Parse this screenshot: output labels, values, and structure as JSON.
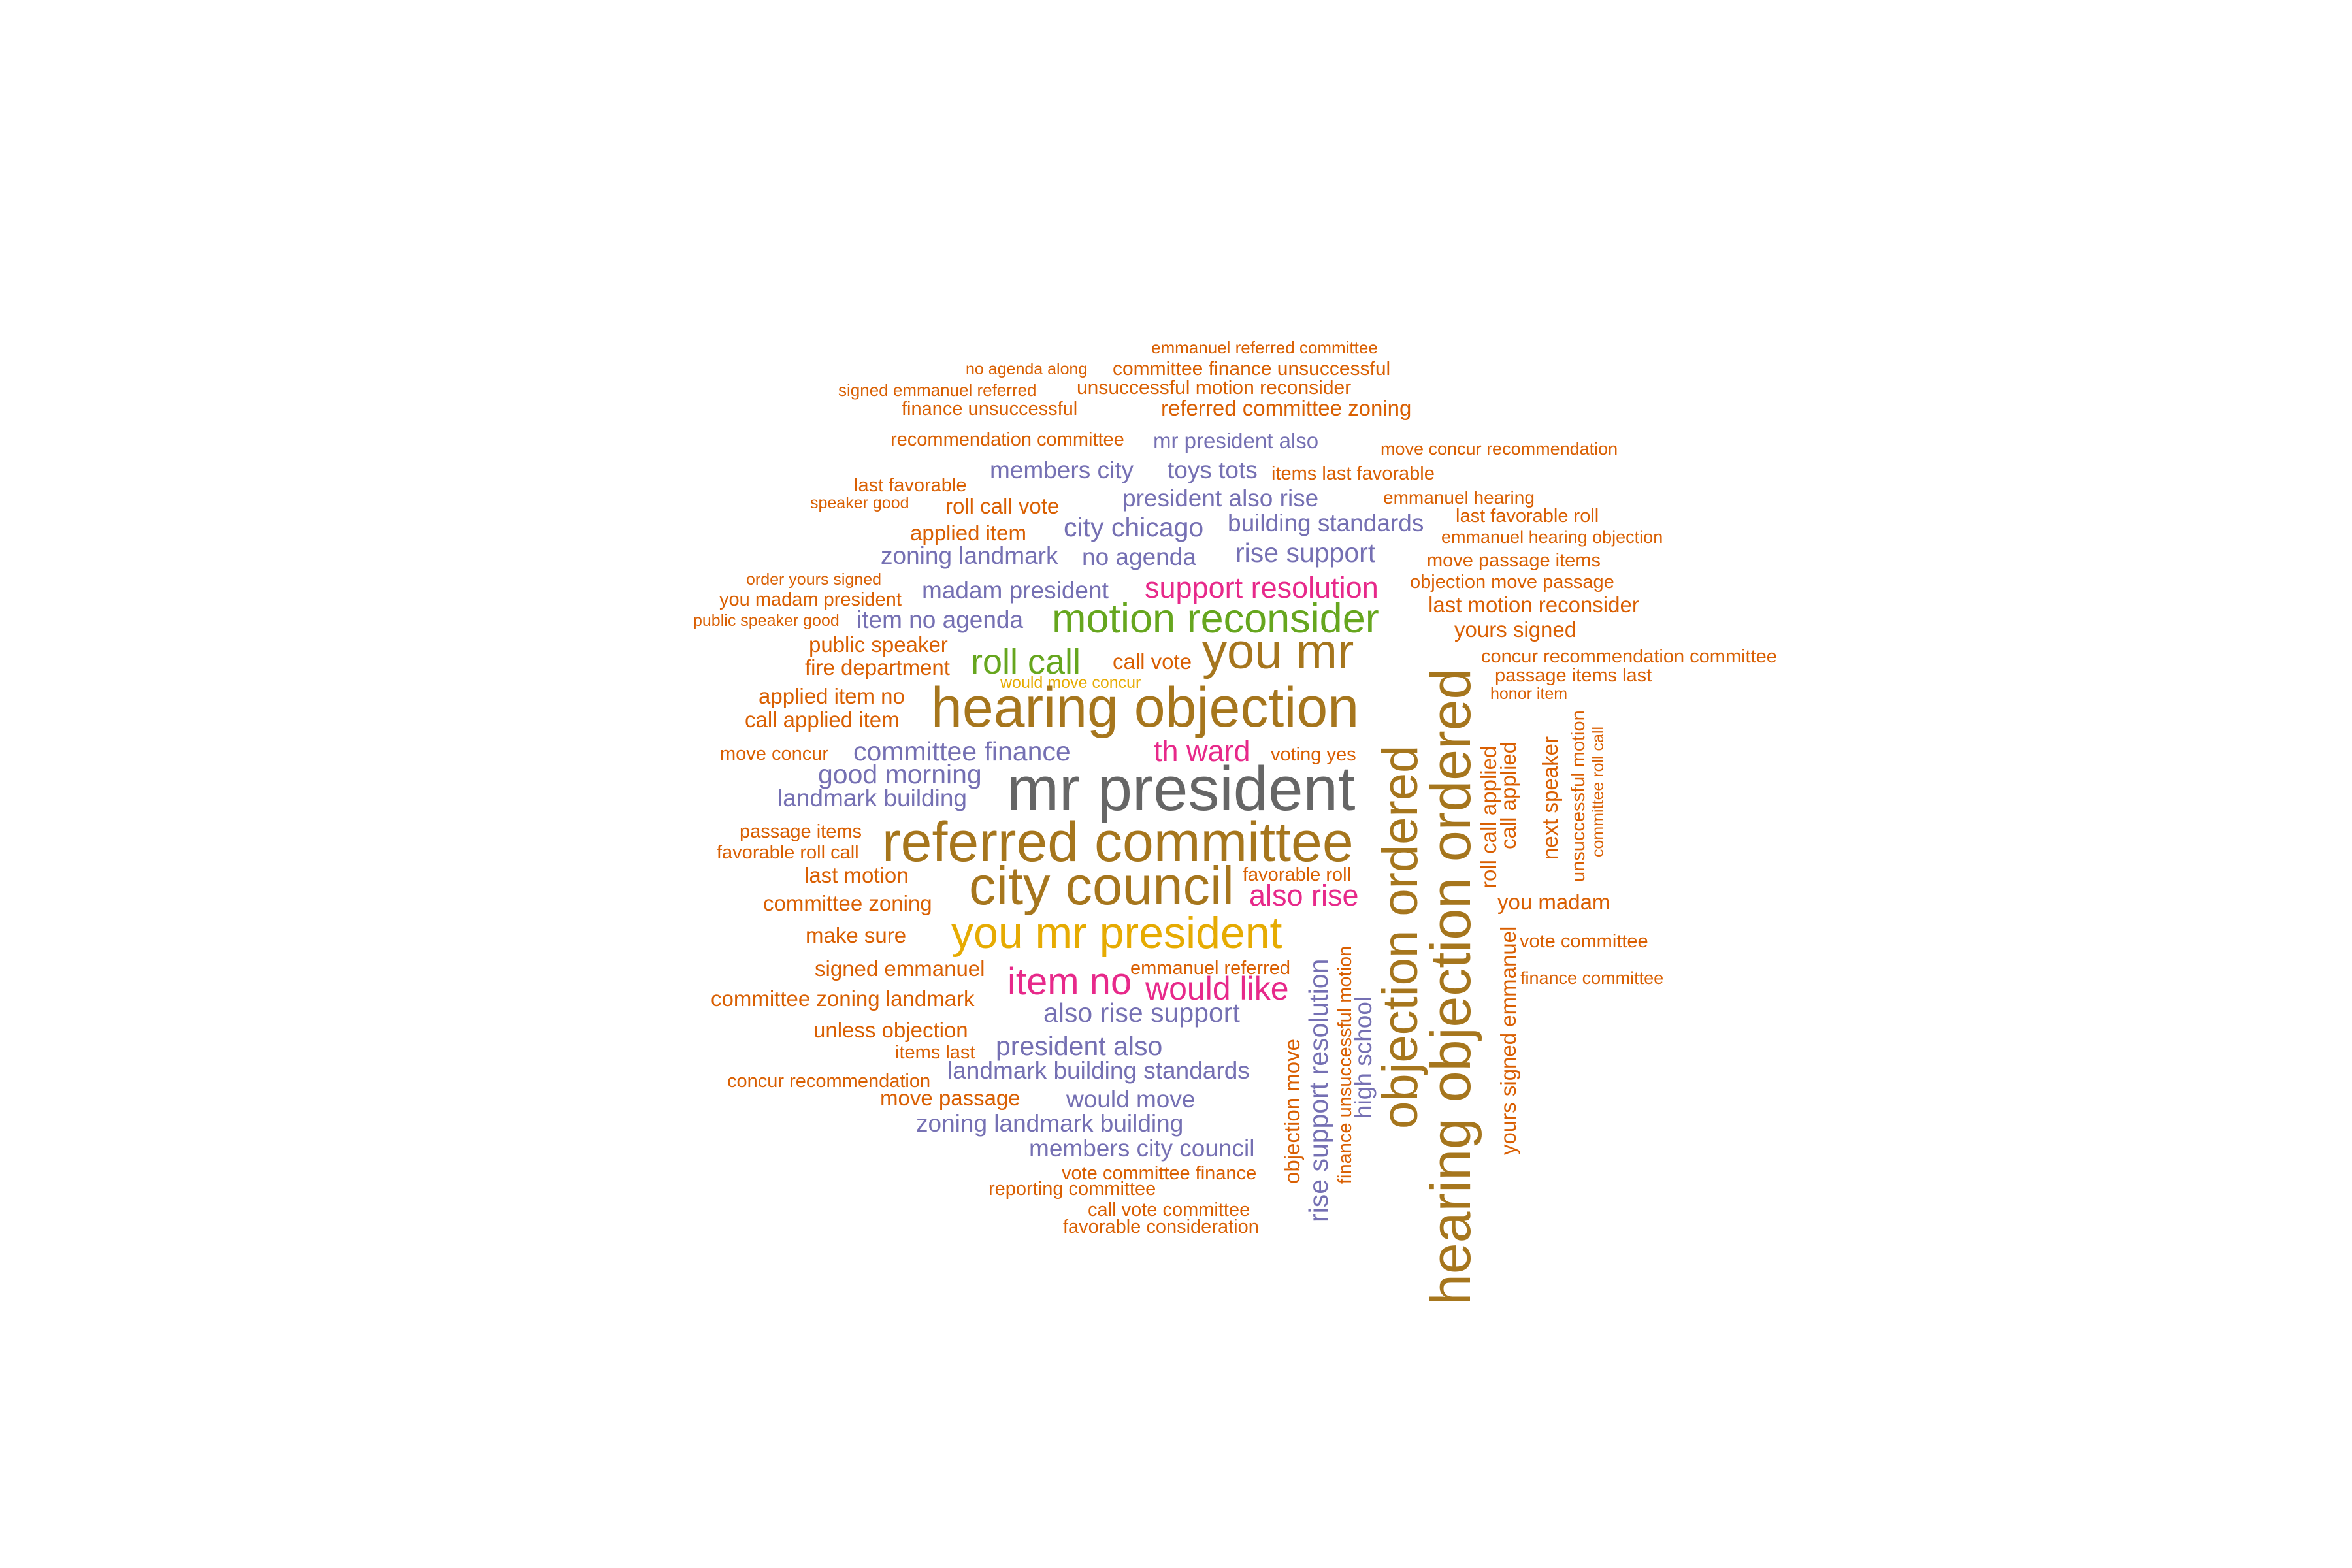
{
  "palette": {
    "c1": "#d95f02",
    "c2": "#7570b3",
    "c3": "#e7298a",
    "c4": "#66a61e",
    "c5": "#e6ab02",
    "c6": "#a6761d",
    "c7": "#666666"
  },
  "words": [
    "emmanuel referred committee",
    "no agenda along",
    "committee finance unsuccessful",
    "signed emmanuel referred",
    "unsuccessful motion reconsider",
    "finance unsuccessful",
    "referred committee zoning",
    "recommendation committee",
    "mr president also",
    "move concur recommendation",
    "members city",
    "toys tots",
    "items last favorable",
    "last favorable",
    "emmanuel hearing",
    "speaker good",
    "roll call vote",
    "president also rise",
    "last favorable roll",
    "city chicago",
    "building standards",
    "applied item",
    "emmanuel hearing objection",
    "zoning landmark",
    "no agenda",
    "rise support",
    "move passage items",
    "order yours signed",
    "madam president",
    "support resolution",
    "objection move passage",
    "you madam president",
    "last motion reconsider",
    "public speaker good",
    "item no agenda",
    "motion reconsider",
    "yours signed",
    "public speaker",
    "you mr",
    "concur recommendation committee",
    "fire department",
    "roll call",
    "call vote",
    "passage items last",
    "would move concur",
    "applied item no",
    "honor item",
    "hearing objection",
    "call applied item",
    "move concur",
    "committee finance",
    "th ward",
    "voting yes",
    "good morning",
    "mr president",
    "landmark building",
    "passage items",
    "referred committee",
    "favorable roll call",
    "last motion",
    "favorable roll",
    "city council",
    "committee zoning",
    "also rise",
    "you madam",
    "make sure",
    "you mr president",
    "vote committee",
    "signed emmanuel",
    "emmanuel referred",
    "item no",
    "finance committee",
    "committee zoning landmark",
    "would like",
    "also rise support",
    "unless objection",
    "items last",
    "president also",
    "concur recommendation",
    "landmark building standards",
    "move passage",
    "would move",
    "zoning landmark building",
    "members city council",
    "vote committee finance",
    "reporting committee",
    "call vote committee",
    "favorable consideration",
    "hearing objection ordered",
    "objection ordered",
    "objection move",
    "rise support resolution",
    "finance unsuccessful motion",
    "high school",
    "yours signed emmanuel",
    "roll call applied",
    "call applied",
    "next speaker",
    "unsuccessful motion",
    "committee roll call"
  ]
}
